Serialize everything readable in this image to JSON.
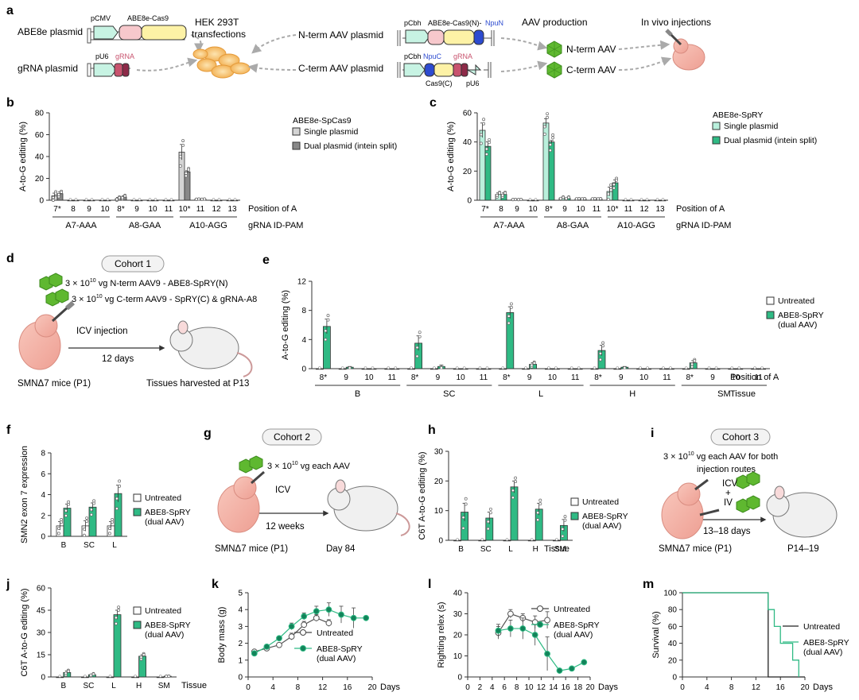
{
  "colors": {
    "green": "#2fba84",
    "green_dark": "#13835a",
    "mint": "#b9f0dc",
    "gray_light": "#d4d4d4",
    "gray_dark": "#888888",
    "pink": "#f7c8cc",
    "yellow": "#fdf2a6",
    "teal_box": "#c7f3e3",
    "rose": "#c8536e",
    "blue": "#2d4bd0",
    "aav": "#5fb830"
  },
  "panel_a": {
    "letter": "a",
    "abe8e_plasmid": "ABE8e plasmid",
    "grna_plasmid": "gRNA plasmid",
    "pcmv": "pCMV",
    "abe8e_cas9": "ABE8e-Cas9",
    "pu6": "pU6",
    "grna": "gRNA",
    "hek_line1": "HEK 293T",
    "hek_line2": "transfections",
    "nterm_plasmid": "N-term AAV plasmid",
    "cterm_plasmid": "C-term AAV plasmid",
    "pcbh": "pCbh",
    "abe8e_cas9n": "ABE8e-Cas9(N)-",
    "npun": "NpuN",
    "npuc": "NpuC",
    "cas9c": "Cas9(C)",
    "aav_production": "AAV production",
    "nterm_aav": "N-term AAV",
    "cterm_aav": "C-term AAV",
    "in_vivo": "In vivo injections"
  },
  "panel_d": {
    "letter": "d",
    "cohort": "Cohort 1",
    "dose1": "3 × 10",
    "dose_exp": "10",
    "dose1_rest": " vg N-term AAV9 - ABE8-SpRY(N)",
    "dose2": "3 × 10",
    "dose2_rest": " vg C-term AAV9 - SpRY(C) & gRNA-A8",
    "route": "ICV injection",
    "duration": "12 days",
    "mice": "SMNΔ7 mice (P1)",
    "harvest": "Tissues harvested at P13"
  },
  "panel_g": {
    "letter": "g",
    "cohort": "Cohort 2",
    "dose": "3 × 10",
    "dose_exp": "10",
    "dose_rest": " vg each AAV",
    "route": "ICV",
    "duration": "12 weeks",
    "mice": "SMNΔ7 mice (P1)",
    "endpoint": "Day 84"
  },
  "panel_i": {
    "letter": "i",
    "cohort": "Cohort 3",
    "dose": "3 × 10",
    "dose_exp": "10",
    "dose_rest": " vg each AAV for both",
    "line2": "injection routes",
    "icv": "ICV",
    "plus": "+",
    "iv": "IV",
    "duration": "13–18 days",
    "mice": "SMNΔ7 mice (P1)",
    "endpoint": "P14–19"
  },
  "chart_data": [
    {
      "id": "b",
      "type": "bar",
      "letter": "b",
      "ylabel": "A-to-G editing (%)",
      "ylim": [
        0,
        80
      ],
      "yticks": [
        0,
        20,
        40,
        60,
        80
      ],
      "legend_title": "ABE8e-SpCas9",
      "series": [
        {
          "name": "Single plasmid",
          "color": "gray_light"
        },
        {
          "name": "Dual plasmid (intein split)",
          "color": "gray_dark"
        }
      ],
      "categories": [
        "7*",
        "8",
        "9",
        "10",
        "8*",
        "9",
        "10",
        "11",
        "10*",
        "11",
        "12",
        "13"
      ],
      "values": [
        [
          4,
          0,
          0,
          0,
          1.5,
          0,
          0,
          0,
          44,
          1,
          0,
          0
        ],
        [
          6,
          0,
          0,
          0,
          3,
          0,
          0,
          0,
          26,
          1,
          0,
          0
        ]
      ],
      "errors": [
        [
          2.5,
          0,
          0,
          0,
          1,
          0,
          0,
          0,
          7,
          0,
          0,
          0
        ],
        [
          1.5,
          0,
          0,
          0,
          1,
          0,
          0,
          0,
          1,
          0,
          0,
          0
        ]
      ],
      "groups": [
        {
          "label": "A7-AAA",
          "from": 0,
          "to": 3
        },
        {
          "label": "A8-GAA",
          "from": 4,
          "to": 7
        },
        {
          "label": "A10-AGG",
          "from": 8,
          "to": 11
        }
      ],
      "xlabel1": "Position of A",
      "xlabel2": "gRNA ID-PAM"
    },
    {
      "id": "c",
      "type": "bar",
      "letter": "c",
      "ylabel": "A-to-G editing (%)",
      "ylim": [
        0,
        60
      ],
      "yticks": [
        0,
        20,
        40,
        60
      ],
      "legend_title": "ABE8e-SpRY",
      "series": [
        {
          "name": "Single plasmid",
          "color": "mint"
        },
        {
          "name": "Dual plasmid (intein split)",
          "color": "green"
        }
      ],
      "categories": [
        "7*",
        "8",
        "9",
        "10",
        "8*",
        "9",
        "10",
        "11",
        "10*",
        "11",
        "12",
        "13"
      ],
      "values": [
        [
          48,
          4,
          0.5,
          0,
          53,
          1.5,
          1,
          1,
          6,
          0,
          0,
          0
        ],
        [
          37,
          4,
          0.5,
          0,
          40,
          1.5,
          1,
          1,
          12,
          0,
          0,
          0
        ]
      ],
      "errors": [
        [
          5,
          1,
          0,
          0,
          3,
          0.5,
          0,
          0,
          3,
          0,
          0,
          0
        ],
        [
          3,
          1,
          0,
          0,
          1,
          0.5,
          0,
          0,
          2,
          0,
          0,
          0
        ]
      ],
      "groups": [
        {
          "label": "A7-AAA",
          "from": 0,
          "to": 3
        },
        {
          "label": "A8-GAA",
          "from": 4,
          "to": 7
        },
        {
          "label": "A10-AGG",
          "from": 8,
          "to": 11
        }
      ],
      "xlabel1": "Position of A",
      "xlabel2": "gRNA ID-PAM"
    },
    {
      "id": "e",
      "type": "bar",
      "letter": "e",
      "ylabel": "A-to-G editing (%)",
      "ylim": [
        0,
        12
      ],
      "yticks": [
        0,
        4,
        8,
        12
      ],
      "series": [
        {
          "name": "Untreated",
          "color": "white"
        },
        {
          "name": "ABE8-SpRY\n(dual AAV)",
          "color": "green"
        }
      ],
      "categories": [
        "8*",
        "9",
        "10",
        "11",
        "8*",
        "9",
        "10",
        "11",
        "8*",
        "9",
        "10",
        "11",
        "8*",
        "9",
        "10",
        "11",
        "8*",
        "9",
        "10",
        "11"
      ],
      "values": [
        [
          0,
          0,
          0,
          0,
          0,
          0,
          0,
          0,
          0,
          0,
          0,
          0,
          0,
          0,
          0,
          0,
          0,
          0,
          0,
          0
        ],
        [
          5.8,
          0.2,
          0,
          0,
          3.5,
          0.3,
          0,
          0,
          7.7,
          0.6,
          0,
          0,
          2.5,
          0.2,
          0,
          0,
          0.8,
          0,
          0,
          0
        ]
      ],
      "errors": [
        [
          0,
          0,
          0,
          0,
          0,
          0,
          0,
          0,
          0,
          0,
          0,
          0,
          0,
          0,
          0,
          0,
          0,
          0,
          0,
          0
        ],
        [
          1,
          0.1,
          0,
          0,
          1,
          0.2,
          0,
          0,
          0.8,
          0.2,
          0,
          0,
          0.7,
          0.1,
          0,
          0,
          0.3,
          0,
          0,
          0
        ]
      ],
      "groups": [
        {
          "label": "B",
          "from": 0,
          "to": 3
        },
        {
          "label": "SC",
          "from": 4,
          "to": 7
        },
        {
          "label": "L",
          "from": 8,
          "to": 11
        },
        {
          "label": "H",
          "from": 12,
          "to": 15
        },
        {
          "label": "SM",
          "from": 16,
          "to": 19
        }
      ],
      "xlabel1": "Position of A",
      "xlabel2": "Tissue"
    },
    {
      "id": "f",
      "type": "bar",
      "letter": "f",
      "ylabel": "SMN2 exon 7 expression",
      "ylim": [
        0,
        8
      ],
      "yticks": [
        0,
        2,
        4,
        6,
        8
      ],
      "series": [
        {
          "name": "Untreated",
          "color": "white"
        },
        {
          "name": "ABE8-SpRY\n(dual AAV)",
          "color": "green"
        }
      ],
      "categories": [
        "B",
        "SC",
        "L"
      ],
      "values": [
        [
          1,
          1,
          1
        ],
        [
          2.7,
          2.8,
          4.1
        ]
      ],
      "errors": [
        [
          0.4,
          0.5,
          0.4
        ],
        [
          0.4,
          0.4,
          0.8
        ]
      ]
    },
    {
      "id": "h",
      "type": "bar",
      "letter": "h",
      "ylabel": "C6T A-to-G editing (%)",
      "ylim": [
        0,
        30
      ],
      "yticks": [
        0,
        10,
        20,
        30
      ],
      "series": [
        {
          "name": "Untreated",
          "color": "white"
        },
        {
          "name": "ABE8-SpRY\n(dual AAV)",
          "color": "green"
        }
      ],
      "categories": [
        "B",
        "SC",
        "L",
        "H",
        "SM"
      ],
      "values": [
        [
          0,
          0,
          0,
          0,
          0
        ],
        [
          9.5,
          7.5,
          18,
          10.5,
          5
        ]
      ],
      "errors": [
        [
          0,
          0,
          0,
          0,
          0
        ],
        [
          3,
          2,
          2,
          2,
          2
        ]
      ],
      "xlabel2": "Tissue"
    },
    {
      "id": "j",
      "type": "bar",
      "letter": "j",
      "ylabel": "C6T A-to-G editing (%)",
      "ylim": [
        0,
        60
      ],
      "yticks": [
        0,
        15,
        30,
        45,
        60
      ],
      "series": [
        {
          "name": "Untreated",
          "color": "white"
        },
        {
          "name": "ABE8-SpRY\n(dual AAV)",
          "color": "green"
        }
      ],
      "categories": [
        "B",
        "SC",
        "L",
        "H",
        "SM"
      ],
      "values": [
        [
          0,
          0,
          0,
          0,
          0
        ],
        [
          3,
          1.5,
          42,
          14,
          0.5
        ]
      ],
      "errors": [
        [
          0,
          0,
          0,
          0,
          0
        ],
        [
          1,
          0.5,
          3,
          1,
          0
        ]
      ],
      "xlabel2": "Tissue"
    },
    {
      "id": "k",
      "type": "line",
      "letter": "k",
      "ylabel": "Body mass (g)",
      "xlabel": "Days",
      "xlim": [
        0,
        20
      ],
      "ylim": [
        0,
        5
      ],
      "xticks": [
        0,
        4,
        8,
        12,
        16,
        20
      ],
      "yticks": [
        0,
        1,
        2,
        3,
        4,
        5
      ],
      "series": [
        {
          "name": "Untreated",
          "style": "open",
          "x": [
            1,
            3,
            5,
            7,
            9,
            11,
            13
          ],
          "y": [
            1.5,
            1.7,
            1.9,
            2.4,
            3.1,
            3.5,
            3.2
          ],
          "err": [
            0.1,
            0.1,
            0.1,
            0.2,
            0.2,
            0.2,
            0.2
          ]
        },
        {
          "name": "ABE8-SpRY\n(dual AAV)",
          "style": "filled",
          "x": [
            1,
            3,
            5,
            7,
            9,
            11,
            13,
            15,
            17,
            19
          ],
          "y": [
            1.4,
            1.8,
            2.3,
            3.0,
            3.6,
            3.9,
            4.0,
            3.7,
            3.5,
            3.5
          ],
          "err": [
            0.1,
            0.1,
            0.1,
            0.2,
            0.2,
            0.3,
            0.4,
            0.5,
            0.6,
            0
          ]
        }
      ]
    },
    {
      "id": "l",
      "type": "line",
      "letter": "l",
      "ylabel": "Righting relex (s)",
      "xlabel": "Days",
      "xlim": [
        0,
        20
      ],
      "ylim": [
        0,
        40
      ],
      "xticks": [
        0,
        2,
        4,
        6,
        8,
        10,
        12,
        14,
        16,
        18,
        20
      ],
      "yticks": [
        0,
        10,
        20,
        30,
        40
      ],
      "series": [
        {
          "name": "Untreated",
          "style": "open",
          "x": [
            5,
            7,
            9,
            11,
            13
          ],
          "y": [
            21,
            30,
            28,
            26,
            27
          ],
          "err": [
            3,
            2,
            2,
            3,
            4
          ]
        },
        {
          "name": "ABE8-SpRY\n(dual AAV)",
          "style": "filled",
          "x": [
            5,
            7,
            9,
            11,
            13,
            15,
            17,
            19
          ],
          "y": [
            22,
            23,
            23,
            20,
            11,
            3,
            4,
            7
          ],
          "err": [
            3,
            4,
            5,
            5,
            8,
            0,
            0,
            0
          ]
        }
      ]
    },
    {
      "id": "m",
      "type": "line",
      "letter": "m",
      "ylabel": "Survival (%)",
      "xlabel": "Days",
      "xlim": [
        0,
        20
      ],
      "ylim": [
        0,
        100
      ],
      "xticks": [
        0,
        4,
        8,
        12,
        16,
        20
      ],
      "yticks": [
        0,
        20,
        40,
        60,
        80,
        100
      ],
      "series": [
        {
          "name": "Untreated",
          "style": "step",
          "color": "#222",
          "x": [
            0,
            14,
            14,
            20
          ],
          "y": [
            100,
            100,
            0,
            0
          ]
        },
        {
          "name": "ABE8-SpRY\n(dual AAV)",
          "style": "step",
          "color": "#2fba84",
          "x": [
            0,
            14,
            14,
            15,
            15,
            16,
            16,
            18,
            18,
            19,
            19
          ],
          "y": [
            100,
            100,
            80,
            80,
            60,
            60,
            40,
            40,
            20,
            20,
            0
          ]
        }
      ]
    }
  ]
}
